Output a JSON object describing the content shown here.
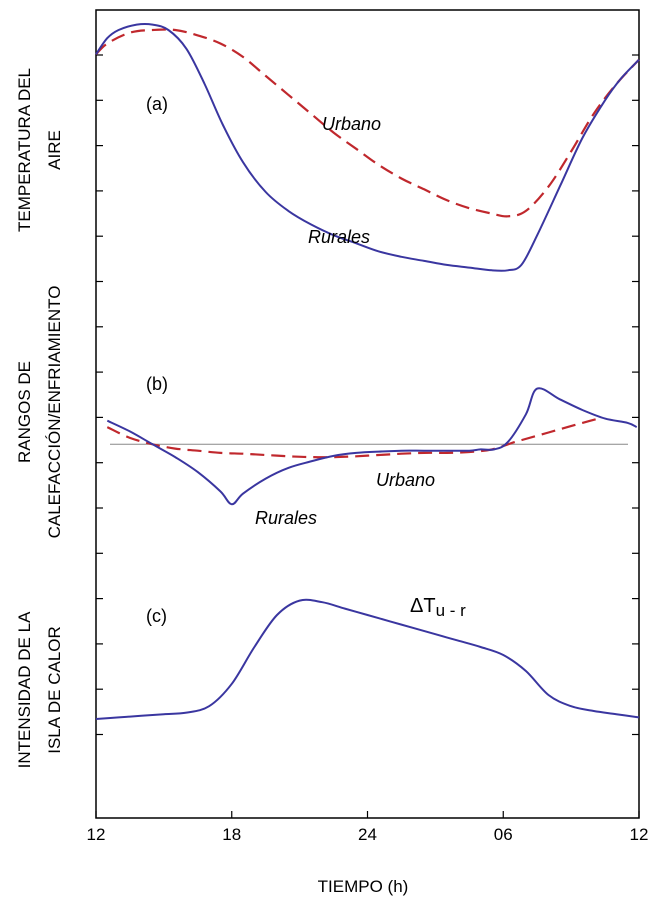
{
  "chart_data": {
    "type": "line",
    "xlabel": "TIEMPO (h)",
    "x_ticks": [
      "12",
      "18",
      "24",
      "06",
      "12"
    ],
    "x_tick_hours": [
      12,
      18,
      24,
      30,
      36
    ],
    "xlim": [
      12,
      36
    ],
    "panels": [
      {
        "label": "(a)",
        "ylabel_lines": [
          "TEMPERATURA DEL",
          "AIRE"
        ],
        "ylim": [
          0,
          10
        ],
        "series": [
          {
            "name": "Urbano",
            "color": "#c0282d",
            "style": "dashed",
            "x": [
              12,
              12.5,
              13.5,
              14.5,
              15.5,
              16.5,
              17.5,
              18.5,
              19.5,
              20.5,
              21.5,
              22.5,
              23.5,
              24.5,
              25.5,
              26.5,
              27.5,
              28.5,
              29.5,
              30.2,
              31,
              32,
              33,
              34,
              35,
              36
            ],
            "values": [
              9.1,
              9.5,
              9.9,
              10.0,
              10.0,
              9.8,
              9.5,
              9.0,
              8.3,
              7.6,
              6.9,
              6.2,
              5.6,
              5.0,
              4.5,
              4.1,
              3.7,
              3.4,
              3.2,
              3.1,
              3.3,
              4.2,
              5.5,
              6.9,
              8.0,
              8.9
            ]
          },
          {
            "name": "Rurales",
            "color": "#3a36a0",
            "style": "solid",
            "x": [
              12,
              12.5,
              13,
              13.8,
              14.5,
              15.2,
              16,
              16.8,
              17.6,
              18.5,
              19.5,
              20.5,
              21.5,
              22.5,
              23.5,
              24.5,
              25.5,
              26.5,
              27.5,
              28.5,
              29.5,
              30.2,
              30.8,
              31.5,
              32.5,
              33.5,
              34.5,
              35.2,
              36
            ],
            "values": [
              9.1,
              9.7,
              10.0,
              10.2,
              10.2,
              10.0,
              9.3,
              8.0,
              6.5,
              5.1,
              4.0,
              3.3,
              2.8,
              2.4,
              2.1,
              1.8,
              1.6,
              1.45,
              1.3,
              1.2,
              1.1,
              1.1,
              1.3,
              2.4,
              4.2,
              6.0,
              7.4,
              8.2,
              8.9
            ]
          }
        ]
      },
      {
        "label": "(b)",
        "ylabel_lines": [
          "RANGOS DE",
          "CALEFACCIÓN/ENFRIAMIENTO"
        ],
        "ylim": [
          -2,
          1.5
        ],
        "series": [
          {
            "name": "Urbano",
            "color": "#c0282d",
            "style": "dashed",
            "x": [
              12.5,
              13.5,
              14.5,
              15.5,
              16.5,
              17.5,
              18.5,
              19.5,
              20.5,
              21.5,
              22.5,
              23.5,
              24.5,
              25.5,
              26.5,
              27.5,
              28.5,
              29.5,
              30.5,
              31.5,
              32.5,
              33.5,
              34.2
            ],
            "values": [
              0.4,
              0.15,
              0.0,
              -0.1,
              -0.15,
              -0.2,
              -0.22,
              -0.25,
              -0.28,
              -0.3,
              -0.3,
              -0.28,
              -0.25,
              -0.22,
              -0.2,
              -0.2,
              -0.18,
              -0.12,
              0.05,
              0.2,
              0.35,
              0.5,
              0.6
            ]
          },
          {
            "name": "Rurales",
            "color": "#3a36a0",
            "style": "solid",
            "x": [
              12.5,
              13.5,
              14.5,
              15.5,
              16.5,
              17.5,
              18.0,
              18.5,
              19.5,
              20.5,
              21.5,
              22.5,
              23.5,
              24.5,
              25.5,
              26.5,
              27.5,
              28.5,
              29.0,
              29.6,
              30.2,
              31.0,
              31.5,
              32.5,
              33.5,
              34.5,
              35.5,
              35.9
            ],
            "values": [
              0.55,
              0.3,
              0.0,
              -0.3,
              -0.65,
              -1.1,
              -1.4,
              -1.15,
              -0.8,
              -0.55,
              -0.4,
              -0.27,
              -0.2,
              -0.17,
              -0.15,
              -0.15,
              -0.15,
              -0.15,
              -0.12,
              -0.12,
              0.05,
              0.7,
              1.3,
              1.05,
              0.8,
              0.6,
              0.5,
              0.4
            ]
          }
        ],
        "zero_line": true
      },
      {
        "label": "(c)",
        "ylabel_lines": [
          "INTENSIDAD DE LA",
          "ISLA DE CALOR"
        ],
        "ylim": [
          0,
          10
        ],
        "series": [
          {
            "name": "ΔTu - r",
            "color": "#3a36a0",
            "style": "solid",
            "x": [
              12,
              13,
              14,
              15,
              16,
              17,
              18,
              19,
              20,
              21,
              22,
              23,
              24,
              25,
              26,
              27,
              28,
              29,
              30,
              31,
              32,
              33,
              34,
              35,
              36
            ],
            "values": [
              1.0,
              1.1,
              1.2,
              1.3,
              1.4,
              1.8,
              3.2,
              5.5,
              7.5,
              8.4,
              8.3,
              7.9,
              7.5,
              7.1,
              6.7,
              6.3,
              5.9,
              5.5,
              5.0,
              4.0,
              2.5,
              1.8,
              1.5,
              1.3,
              1.1
            ]
          }
        ]
      }
    ],
    "annotations": {
      "a_urbano": "Urbano",
      "a_rurales": "Rurales",
      "b_urbano": "Urbano",
      "b_rurales": "Rurales",
      "c_delta_symbol": "Δ",
      "c_delta_main": "T",
      "c_delta_sub": "u - r"
    }
  }
}
